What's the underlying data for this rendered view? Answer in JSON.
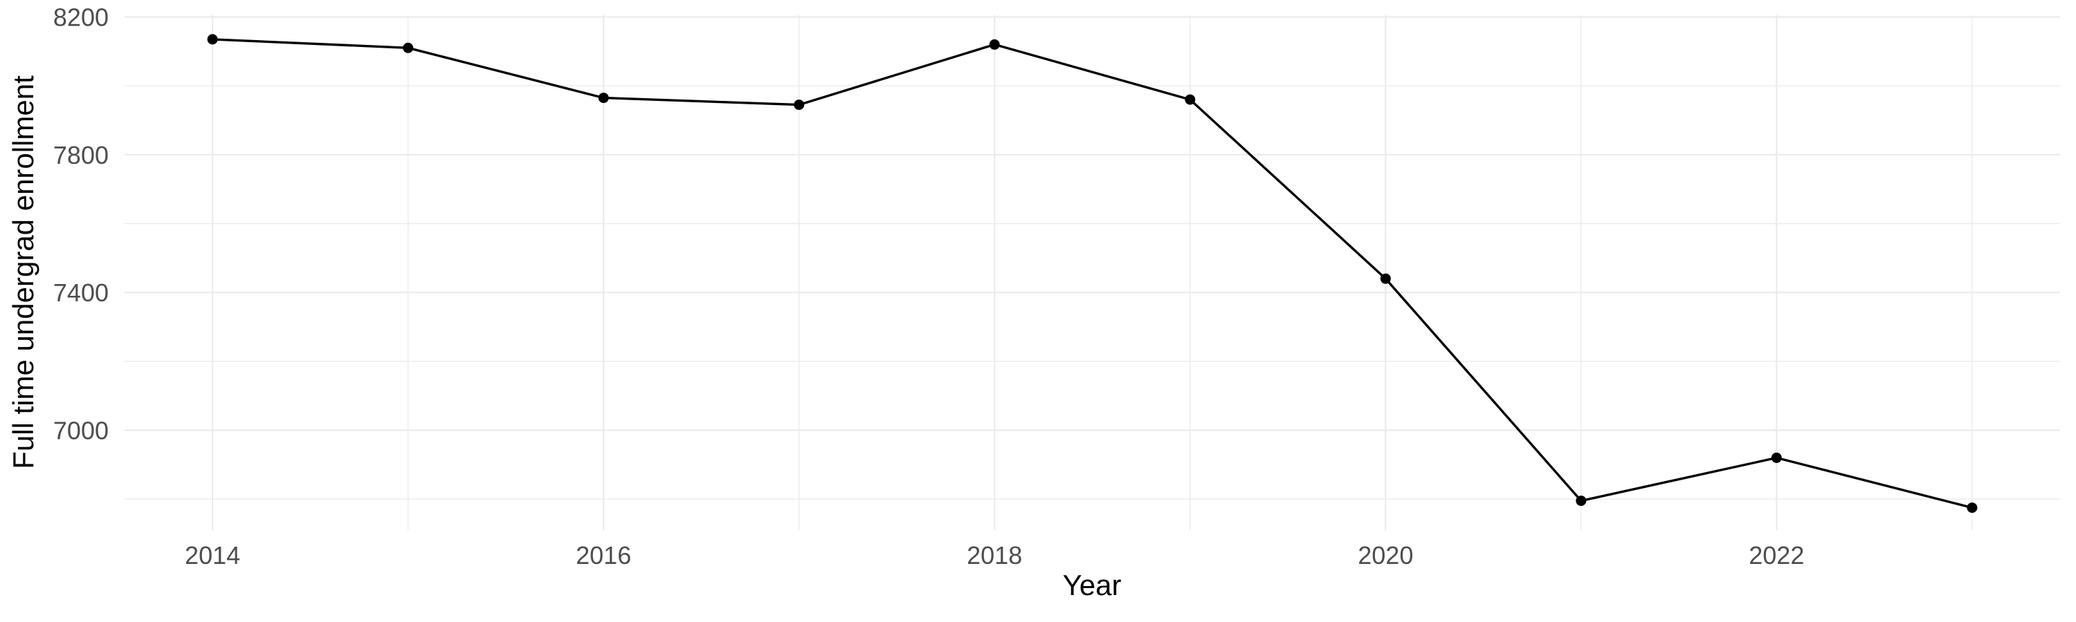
{
  "page": {
    "background_color": "#ffffff",
    "description": "Minimal-theme line chart of full time undergraduate enrollment by year"
  },
  "chart_data": {
    "type": "line",
    "title": "",
    "xlabel": "Year",
    "ylabel": "Full time undergrad enrollment",
    "x": [
      2014,
      2015,
      2016,
      2017,
      2018,
      2019,
      2020,
      2021,
      2022,
      2023
    ],
    "values": [
      8135,
      8110,
      7965,
      7945,
      8120,
      7960,
      7440,
      6795,
      6920,
      6775
    ],
    "series_name": "Full time undergrad enrollment",
    "x_ticks_major": [
      2014,
      2016,
      2018,
      2020,
      2022
    ],
    "x_ticks_minor": [
      2015,
      2017,
      2019,
      2021,
      2023
    ],
    "y_ticks_major": [
      8200,
      7800,
      7400,
      7000
    ],
    "y_ticks_minor": [
      8000,
      7600,
      7200,
      6800
    ],
    "xlim": [
      2013.55,
      2023.45
    ],
    "ylim": [
      6710,
      8205
    ],
    "grid": "on",
    "legend": "none",
    "marker": "filled-circle",
    "colors": {
      "line": "#000000",
      "point": "#000000",
      "grid_major": "#ebebeb",
      "grid_minor": "#ebebeb",
      "tick_text": "#4d4d4d",
      "axis_title_text": "#000000",
      "background": "#ffffff"
    }
  }
}
